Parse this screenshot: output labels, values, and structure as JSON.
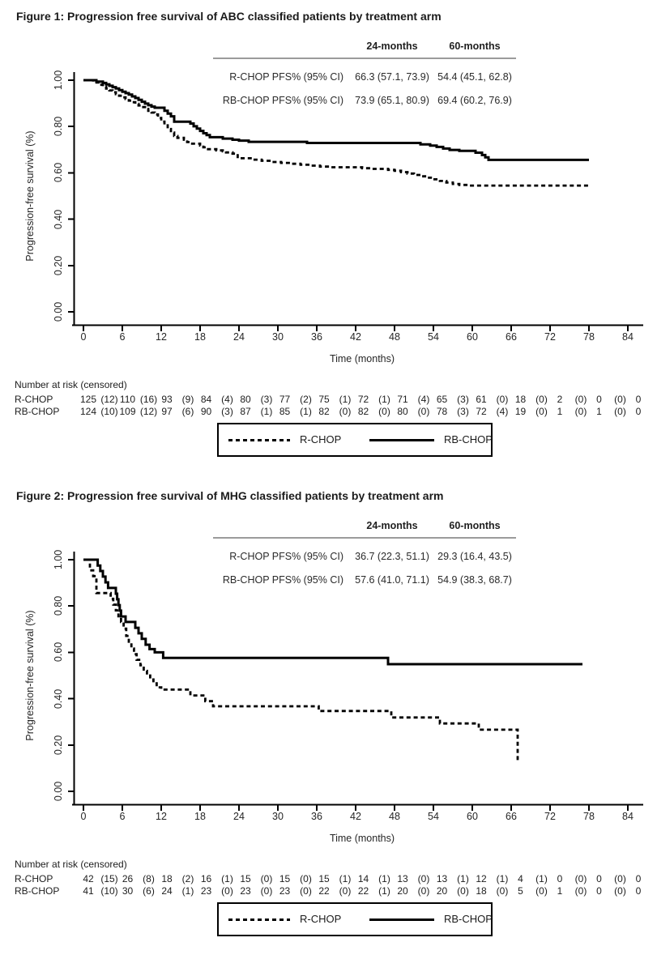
{
  "colors": {
    "curve": "#000000",
    "axis": "#000000",
    "text": "#212121",
    "table_rule": "#9b9b9b"
  },
  "chart_data": [
    {
      "type": "line",
      "subtype": "kaplan-meier-step",
      "title": "Figure 1: Progression free survival of ABC classified patients by treatment arm",
      "xlabel": "Time (months)",
      "ylabel": "Progression-free survival (%)",
      "xlim": [
        0,
        84
      ],
      "ylim": [
        0.0,
        1.0
      ],
      "xticks": [
        0,
        6,
        12,
        18,
        24,
        30,
        36,
        42,
        48,
        54,
        60,
        66,
        72,
        78,
        84
      ],
      "ytick_labels": [
        "0.00",
        "0.20",
        "0.40",
        "0.60",
        "0.80",
        "1.00"
      ],
      "grid": false,
      "legend_position": "bottom-center-boxed",
      "series": [
        {
          "name": "R-CHOP",
          "line_style": "dashed",
          "color": "#000000",
          "points": [
            [
              0,
              1.0
            ],
            [
              1.5,
              0.99
            ],
            [
              2.5,
              0.98
            ],
            [
              3,
              0.972
            ],
            [
              3.5,
              0.964
            ],
            [
              4,
              0.956
            ],
            [
              4.5,
              0.948
            ],
            [
              5,
              0.94
            ],
            [
              5.5,
              0.933
            ],
            [
              6,
              0.926
            ],
            [
              6.5,
              0.919
            ],
            [
              7,
              0.912
            ],
            [
              7.5,
              0.905
            ],
            [
              8,
              0.898
            ],
            [
              8.5,
              0.891
            ],
            [
              9,
              0.884
            ],
            [
              9.5,
              0.876
            ],
            [
              10,
              0.868
            ],
            [
              10.5,
              0.86
            ],
            [
              11,
              0.852
            ],
            [
              11.5,
              0.837
            ],
            [
              12,
              0.821
            ],
            [
              12.5,
              0.805
            ],
            [
              13,
              0.789
            ],
            [
              13.5,
              0.774
            ],
            [
              14,
              0.759
            ],
            [
              14.5,
              0.751
            ],
            [
              15.5,
              0.743
            ],
            [
              16,
              0.733
            ],
            [
              16.5,
              0.726
            ],
            [
              18,
              0.718
            ],
            [
              18.5,
              0.71
            ],
            [
              19,
              0.702
            ],
            [
              20.5,
              0.697
            ],
            [
              21.5,
              0.693
            ],
            [
              22,
              0.688
            ],
            [
              23,
              0.683
            ],
            [
              23.8,
              0.663
            ],
            [
              26,
              0.657
            ],
            [
              27.5,
              0.652
            ],
            [
              29,
              0.647
            ],
            [
              30.5,
              0.643
            ],
            [
              32,
              0.639
            ],
            [
              33.5,
              0.635
            ],
            [
              35,
              0.631
            ],
            [
              36.5,
              0.627
            ],
            [
              38,
              0.624
            ],
            [
              43,
              0.62
            ],
            [
              44.5,
              0.617
            ],
            [
              47,
              0.613
            ],
            [
              48,
              0.609
            ],
            [
              49,
              0.603
            ],
            [
              50,
              0.597
            ],
            [
              51,
              0.591
            ],
            [
              52,
              0.585
            ],
            [
              53,
              0.579
            ],
            [
              54,
              0.572
            ],
            [
              55,
              0.565
            ],
            [
              56,
              0.558
            ],
            [
              57,
              0.552
            ],
            [
              58,
              0.548
            ],
            [
              59.5,
              0.545
            ],
            [
              78,
              0.545
            ]
          ]
        },
        {
          "name": "RB-CHOP",
          "line_style": "solid",
          "color": "#000000",
          "points": [
            [
              0,
              1.0
            ],
            [
              2,
              0.994
            ],
            [
              3,
              0.988
            ],
            [
              3.5,
              0.982
            ],
            [
              4,
              0.976
            ],
            [
              4.5,
              0.97
            ],
            [
              5,
              0.964
            ],
            [
              5.5,
              0.957
            ],
            [
              6,
              0.95
            ],
            [
              6.5,
              0.944
            ],
            [
              7,
              0.938
            ],
            [
              7.5,
              0.93
            ],
            [
              8,
              0.923
            ],
            [
              8.5,
              0.915
            ],
            [
              9,
              0.907
            ],
            [
              9.5,
              0.899
            ],
            [
              10,
              0.892
            ],
            [
              10.5,
              0.886
            ],
            [
              11,
              0.881
            ],
            [
              12.5,
              0.868
            ],
            [
              13,
              0.856
            ],
            [
              13.5,
              0.844
            ],
            [
              14,
              0.821
            ],
            [
              16.5,
              0.813
            ],
            [
              17,
              0.801
            ],
            [
              17.5,
              0.791
            ],
            [
              18,
              0.781
            ],
            [
              18.5,
              0.771
            ],
            [
              19,
              0.763
            ],
            [
              19.5,
              0.754
            ],
            [
              21.5,
              0.748
            ],
            [
              23,
              0.743
            ],
            [
              24,
              0.739
            ],
            [
              25.5,
              0.734
            ],
            [
              34.5,
              0.729
            ],
            [
              52,
              0.723
            ],
            [
              53.5,
              0.718
            ],
            [
              54.5,
              0.712
            ],
            [
              55.5,
              0.705
            ],
            [
              56.5,
              0.699
            ],
            [
              58,
              0.695
            ],
            [
              60.5,
              0.687
            ],
            [
              61.5,
              0.677
            ],
            [
              62,
              0.667
            ],
            [
              62.5,
              0.656
            ],
            [
              78,
              0.656
            ]
          ]
        }
      ],
      "stats_table": {
        "col_headers": [
          "24-months",
          "60-months"
        ],
        "rows": [
          {
            "label": "R-CHOP PFS% (95% CI)",
            "values": [
              "66.3 (57.1, 73.9)",
              "54.4 (45.1, 62.8)"
            ]
          },
          {
            "label": "RB-CHOP PFS% (95% CI)",
            "values": [
              "73.9 (65.1, 80.9)",
              "69.4 (60.2, 76.9)"
            ]
          }
        ]
      },
      "number_at_risk": {
        "heading": "Number at risk (censored)",
        "time_points": [
          0,
          6,
          12,
          18,
          24,
          30,
          36,
          42,
          48,
          54,
          60,
          66,
          72,
          78,
          84
        ],
        "rows": [
          {
            "label": "R-CHOP",
            "counts": [
              125,
              110,
              93,
              84,
              80,
              77,
              75,
              72,
              71,
              65,
              61,
              18,
              2,
              0,
              0
            ],
            "censored": [
              12,
              16,
              9,
              4,
              3,
              2,
              1,
              1,
              4,
              3,
              0,
              0,
              0,
              0
            ]
          },
          {
            "label": "RB-CHOP",
            "counts": [
              124,
              109,
              97,
              90,
              87,
              85,
              82,
              82,
              80,
              78,
              72,
              19,
              1,
              1,
              0
            ],
            "censored": [
              10,
              12,
              6,
              3,
              1,
              1,
              0,
              0,
              0,
              3,
              4,
              0,
              0,
              0
            ]
          }
        ]
      }
    },
    {
      "type": "line",
      "subtype": "kaplan-meier-step",
      "title": "Figure 2: Progression free survival of MHG classified patients by treatment arm",
      "xlabel": "Time (months)",
      "ylabel": "Progression-free survival (%)",
      "xlim": [
        0,
        84
      ],
      "ylim": [
        0.0,
        1.0
      ],
      "xticks": [
        0,
        6,
        12,
        18,
        24,
        30,
        36,
        42,
        48,
        54,
        60,
        66,
        72,
        78,
        84
      ],
      "ytick_labels": [
        "0.00",
        "0.20",
        "0.40",
        "0.60",
        "0.80",
        "1.00"
      ],
      "grid": false,
      "legend_position": "bottom-center-boxed",
      "series": [
        {
          "name": "R-CHOP",
          "line_style": "dashed",
          "color": "#000000",
          "points": [
            [
              0.5,
              1.0
            ],
            [
              1,
              0.954
            ],
            [
              1.5,
              0.929
            ],
            [
              2,
              0.856
            ],
            [
              4.2,
              0.831
            ],
            [
              4.6,
              0.806
            ],
            [
              5,
              0.781
            ],
            [
              5.4,
              0.756
            ],
            [
              5.8,
              0.731
            ],
            [
              6.2,
              0.702
            ],
            [
              6.6,
              0.671
            ],
            [
              7,
              0.64
            ],
            [
              7.4,
              0.616
            ],
            [
              7.8,
              0.592
            ],
            [
              8.2,
              0.568
            ],
            [
              8.8,
              0.544
            ],
            [
              9.3,
              0.52
            ],
            [
              9.8,
              0.5
            ],
            [
              10.3,
              0.483
            ],
            [
              10.8,
              0.466
            ],
            [
              11.3,
              0.449
            ],
            [
              12,
              0.439
            ],
            [
              16.5,
              0.414
            ],
            [
              18.8,
              0.389
            ],
            [
              20,
              0.367
            ],
            [
              36.3,
              0.347
            ],
            [
              47.5,
              0.319
            ],
            [
              55,
              0.293
            ],
            [
              61,
              0.266
            ],
            [
              67,
              0.134
            ]
          ]
        },
        {
          "name": "RB-CHOP",
          "line_style": "solid",
          "color": "#000000",
          "points": [
            [
              0,
              1.0
            ],
            [
              2.2,
              0.975
            ],
            [
              2.6,
              0.951
            ],
            [
              3,
              0.927
            ],
            [
              3.4,
              0.902
            ],
            [
              3.8,
              0.878
            ],
            [
              5,
              0.853
            ],
            [
              5.2,
              0.829
            ],
            [
              5.4,
              0.804
            ],
            [
              5.6,
              0.78
            ],
            [
              5.8,
              0.755
            ],
            [
              6.5,
              0.731
            ],
            [
              8,
              0.706
            ],
            [
              8.5,
              0.682
            ],
            [
              9,
              0.658
            ],
            [
              9.6,
              0.633
            ],
            [
              10.2,
              0.614
            ],
            [
              11,
              0.6
            ],
            [
              12.3,
              0.576
            ],
            [
              47,
              0.549
            ],
            [
              77,
              0.549
            ]
          ]
        }
      ],
      "stats_table": {
        "col_headers": [
          "24-months",
          "60-months"
        ],
        "rows": [
          {
            "label": "R-CHOP PFS% (95% CI)",
            "values": [
              "36.7 (22.3, 51.1)",
              "29.3 (16.4, 43.5)"
            ]
          },
          {
            "label": "RB-CHOP PFS% (95% CI)",
            "values": [
              "57.6 (41.0, 71.1)",
              "54.9 (38.3, 68.7)"
            ]
          }
        ]
      },
      "number_at_risk": {
        "heading": "Number at risk (censored)",
        "time_points": [
          0,
          6,
          12,
          18,
          24,
          30,
          36,
          42,
          48,
          54,
          60,
          66,
          72,
          78,
          84
        ],
        "rows": [
          {
            "label": "R-CHOP",
            "counts": [
              42,
              26,
              18,
              16,
              15,
              15,
              15,
              14,
              13,
              13,
              12,
              4,
              0,
              0,
              0
            ],
            "censored": [
              15,
              8,
              2,
              1,
              0,
              0,
              1,
              1,
              0,
              1,
              1,
              1,
              0,
              0
            ]
          },
          {
            "label": "RB-CHOP",
            "counts": [
              41,
              30,
              24,
              23,
              23,
              23,
              22,
              22,
              20,
              20,
              18,
              5,
              1,
              0,
              0
            ],
            "censored": [
              10,
              6,
              1,
              0,
              0,
              0,
              0,
              1,
              0,
              0,
              0,
              0,
              0,
              0
            ]
          }
        ]
      }
    }
  ]
}
